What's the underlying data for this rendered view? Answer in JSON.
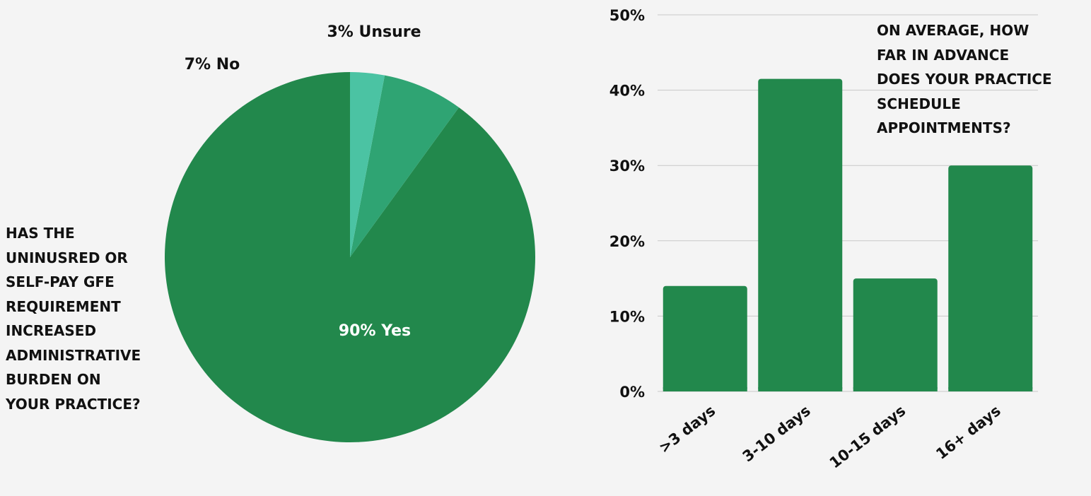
{
  "colors": {
    "background": "#f4f4f4",
    "bar": "#22884c",
    "grid": "#c8c8c8",
    "text": "#111111",
    "label_on_slice": "#ffffff"
  },
  "chart_data": [
    {
      "type": "pie",
      "title": "HAS THE\nUNINUSRED OR\nSELF-PAY GFE\nREQUIREMENT\nINCREASED\nADMINISTRATIVE\nBURDEN ON\nYOUR PRACTICE?",
      "slices": [
        {
          "name": "Yes",
          "value": 90,
          "label": "90% Yes",
          "color": "#22884c"
        },
        {
          "name": "No",
          "value": 7,
          "label": "7% No",
          "color": "#2fa473"
        },
        {
          "name": "Unsure",
          "value": 3,
          "label": "3% Unsure",
          "color": "#4bc3a3"
        }
      ]
    },
    {
      "type": "bar",
      "title": "ON AVERAGE, HOW\nFAR IN ADVANCE\nDOES YOUR PRACTICE\nSCHEDULE\nAPPOINTMENTS?",
      "categories": [
        ">3 days",
        "3-10 days",
        "10-15 days",
        "16+ days"
      ],
      "values": [
        14,
        41.5,
        15,
        30
      ],
      "ylim": [
        0,
        50
      ],
      "yticks": [
        "0%",
        "10%",
        "20%",
        "30%",
        "40%",
        "50%"
      ],
      "grid": true,
      "xlabel": "",
      "ylabel": ""
    }
  ]
}
